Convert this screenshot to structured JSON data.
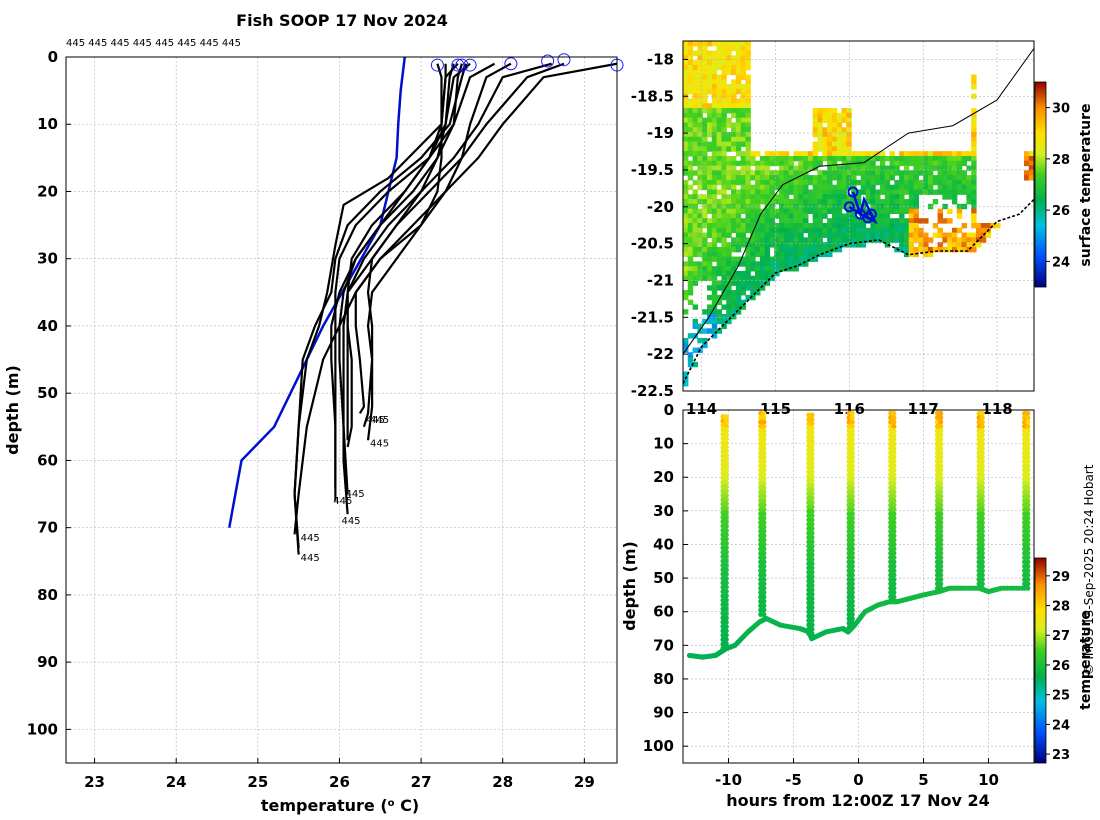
{
  "colors": {
    "profile_line": "#000000",
    "climatology_line": "#0010d0",
    "marker_circle": "#1a1aff",
    "grid": "#b0b0c8",
    "axis": "#000000"
  },
  "credit": "© IMOS 13-Sep-2025 20:24 Hobart",
  "chart_data": [
    {
      "id": "profiles",
      "type": "line",
      "title": "Fish SOOP 17 Nov 2024",
      "xlabel": "temperature (° C)",
      "xlabel_parts": {
        "pre": "temperature (",
        "sup": "o",
        "post": " C)"
      },
      "ylabel": "depth (m)",
      "xlim": [
        22.65,
        29.4
      ],
      "ylim": [
        105,
        0
      ],
      "xticks": [
        "23",
        "24",
        "25",
        "26",
        "27",
        "28",
        "29"
      ],
      "yticks": [
        "0",
        "10",
        "20",
        "30",
        "40",
        "50",
        "60",
        "70",
        "80",
        "90",
        "100"
      ],
      "grid": true,
      "top_labels_text": "445 445 445 445 445 445 445 445",
      "climatology": {
        "name": "climatology",
        "x": [
          26.8,
          26.75,
          26.72,
          26.7,
          26.5,
          25.8,
          25.4,
          25.2,
          24.8,
          24.65
        ],
        "y": [
          0,
          5,
          10,
          15,
          25,
          40,
          50,
          55,
          60,
          70
        ]
      },
      "profiles": [
        {
          "name": "p1",
          "x": [
            27.2,
            27.25,
            27.25,
            27.25,
            27.2,
            27.0,
            26.5,
            26.2,
            26.2,
            26.25,
            26.3,
            26.25
          ],
          "y": [
            1,
            3,
            10,
            15,
            20,
            25,
            30,
            35,
            40,
            45,
            52,
            53
          ]
        },
        {
          "name": "p2",
          "x": [
            27.4,
            27.35,
            27.3,
            27.2,
            27.0,
            26.7,
            26.4,
            26.35,
            26.4,
            26.4,
            26.35,
            26.3
          ],
          "y": [
            1,
            3,
            10,
            15,
            20,
            25,
            30,
            35,
            40,
            45,
            53,
            55
          ]
        },
        {
          "name": "p3",
          "x": [
            28.1,
            27.8,
            27.6,
            27.5,
            27.3,
            27.0,
            26.7,
            26.4,
            26.35,
            26.4,
            26.4,
            26.35
          ],
          "y": [
            1,
            3,
            10,
            15,
            20,
            25,
            30,
            35,
            40,
            45,
            52,
            57
          ]
        },
        {
          "name": "p4",
          "x": [
            28.6,
            28.0,
            27.7,
            27.4,
            27.0,
            26.6,
            26.3,
            26.1,
            26.1,
            26.15,
            26.15,
            26.1
          ],
          "y": [
            1,
            3,
            10,
            15,
            20,
            25,
            30,
            35,
            40,
            45,
            55,
            58
          ]
        },
        {
          "name": "p5",
          "x": [
            27.6,
            27.4,
            27.3,
            27.1,
            26.8,
            26.5,
            26.2,
            26.05,
            26.0,
            26.0,
            26.05,
            26.1
          ],
          "y": [
            1,
            3,
            10,
            15,
            20,
            25,
            30,
            35,
            40,
            45,
            55,
            65
          ]
        },
        {
          "name": "p6",
          "x": [
            27.5,
            27.45,
            27.4,
            27.1,
            26.6,
            26.2,
            26.0,
            25.95,
            25.95,
            25.95,
            25.95,
            25.95
          ],
          "y": [
            1,
            3,
            10,
            15,
            20,
            25,
            30,
            35,
            40,
            50,
            60,
            66
          ]
        },
        {
          "name": "p7",
          "x": [
            28.75,
            28.3,
            27.8,
            27.5,
            27.1,
            26.7,
            26.4,
            26.1,
            26.05,
            26.05,
            26.05,
            26.1
          ],
          "y": [
            1,
            3,
            10,
            15,
            20,
            25,
            30,
            35,
            40,
            50,
            60,
            68
          ]
        },
        {
          "name": "p8",
          "x": [
            29.4,
            28.5,
            28.0,
            27.7,
            27.3,
            26.9,
            26.5,
            26.2,
            26.0,
            25.8,
            25.6,
            25.5,
            25.45
          ],
          "y": [
            1,
            3,
            10,
            15,
            20,
            25,
            30,
            35,
            40,
            45,
            55,
            65,
            71
          ]
        },
        {
          "name": "p9",
          "x": [
            27.45,
            27.3,
            27.25,
            26.6,
            26.05,
            25.95,
            25.85,
            25.75,
            25.6,
            25.5,
            25.45,
            25.5
          ],
          "y": [
            1,
            3,
            10,
            18,
            22,
            28,
            35,
            40,
            45,
            55,
            65,
            74
          ]
        },
        {
          "name": "p10",
          "x": [
            27.3,
            27.3,
            27.25,
            27.1,
            26.8,
            26.4,
            26.15,
            26.1,
            26.1,
            26.1,
            26.1
          ],
          "y": [
            1,
            3,
            10,
            15,
            20,
            25,
            30,
            35,
            40,
            50,
            57
          ]
        },
        {
          "name": "p11",
          "x": [
            27.9,
            27.6,
            27.4,
            27.2,
            26.9,
            26.5,
            26.2,
            26.0,
            25.9,
            25.9,
            25.95,
            25.95
          ],
          "y": [
            1,
            3,
            10,
            15,
            20,
            25,
            30,
            35,
            40,
            45,
            55,
            64
          ]
        },
        {
          "name": "p12",
          "x": [
            27.55,
            27.5,
            27.35,
            27.0,
            26.5,
            26.1,
            25.95,
            25.9,
            25.7,
            25.55,
            25.5,
            25.45,
            25.5
          ],
          "y": [
            1,
            3,
            10,
            15,
            20,
            25,
            30,
            35,
            40,
            45,
            55,
            65,
            73
          ]
        }
      ],
      "markers": {
        "x": [
          27.2,
          27.45,
          27.5,
          27.6,
          28.1,
          28.55,
          28.75,
          29.4
        ],
        "y": [
          1.2,
          1.2,
          1.2,
          1.2,
          1.0,
          0.6,
          0.4,
          1.2
        ]
      },
      "end_labels": [
        {
          "text": "445",
          "x": 26.3,
          "y": 54
        },
        {
          "text": "445",
          "x": 26.35,
          "y": 54
        },
        {
          "text": "445",
          "x": 26.35,
          "y": 57.5
        },
        {
          "text": "445",
          "x": 26.05,
          "y": 65
        },
        {
          "text": "445",
          "x": 25.9,
          "y": 66
        },
        {
          "text": "445",
          "x": 26.0,
          "y": 69
        },
        {
          "text": "445",
          "x": 25.5,
          "y": 71.5
        },
        {
          "text": "445",
          "x": 25.5,
          "y": 74.5
        }
      ]
    },
    {
      "id": "sst_map",
      "type": "heatmap",
      "ylim": [
        -22.5,
        -17.75
      ],
      "xlim": [
        113.75,
        118.5
      ],
      "yticks": [
        "-18",
        "-18.5",
        "-19",
        "-19.5",
        "-20",
        "-20.5",
        "-21",
        "-21.5",
        "-22",
        "-22.5"
      ],
      "xticks": [
        "114",
        "115",
        "116",
        "117",
        "118"
      ],
      "colorbar": {
        "label": "surface temperature",
        "min": 23,
        "max": 31,
        "ticks": [
          "24",
          "26",
          "28",
          "30"
        ]
      },
      "track": {
        "lon": [
          116.05,
          116.1,
          116.15,
          116.2,
          116.3,
          116.35,
          116.25,
          116.15,
          116.0
        ],
        "lat": [
          -19.8,
          -19.95,
          -20.1,
          -19.9,
          -20.1,
          -20.2,
          -20.15,
          -20.1,
          -20.0
        ]
      },
      "coast": {
        "lon": [
          113.75,
          114.0,
          114.3,
          114.6,
          115.0,
          115.3,
          115.6,
          116.0,
          116.4,
          116.8,
          117.2,
          117.6,
          118.0,
          118.3,
          118.5
        ],
        "lat": [
          -22.4,
          -21.9,
          -21.6,
          -21.3,
          -20.9,
          -20.8,
          -20.65,
          -20.5,
          -20.45,
          -20.65,
          -20.6,
          -20.6,
          -20.2,
          -20.1,
          -19.9
        ]
      },
      "isobath": {
        "lon": [
          113.75,
          114.1,
          114.5,
          114.8,
          115.1,
          115.6,
          116.2,
          116.8,
          117.4,
          118.0,
          118.5
        ],
        "lat": [
          -22.0,
          -21.5,
          -20.8,
          -20.1,
          -19.7,
          -19.45,
          -19.4,
          -19.0,
          -18.9,
          -18.55,
          -17.85
        ]
      }
    },
    {
      "id": "time_depth",
      "type": "scatter",
      "xlabel": "hours from 12:00Z 17 Nov 24",
      "ylabel": "depth (m)",
      "xlim": [
        -13.5,
        13.5
      ],
      "ylim": [
        105,
        0
      ],
      "xticks": [
        "-10",
        "-5",
        "0",
        "5",
        "10"
      ],
      "yticks": [
        "0",
        "10",
        "20",
        "30",
        "40",
        "50",
        "60",
        "70",
        "80",
        "90",
        "100"
      ],
      "colorbar": {
        "label": "temperature",
        "min": 22.7,
        "max": 29.6,
        "ticks": [
          "23",
          "24",
          "25",
          "26",
          "27",
          "28",
          "29"
        ]
      },
      "bottom_track": {
        "x": [
          -13,
          -12,
          -11,
          -10.6,
          -10.2,
          -9.5,
          -8.5,
          -7.6,
          -7.1,
          -6,
          -4.5,
          -3.8,
          -3.6,
          -2.5,
          -1.2,
          -0.8,
          -0.3,
          0.5,
          1.5,
          2.4,
          3,
          4,
          5,
          6.2,
          7,
          8,
          9.3,
          10,
          11,
          12.8
        ],
        "y": [
          73,
          73.5,
          73,
          72,
          71,
          70,
          66,
          63,
          62,
          64,
          65,
          66,
          68,
          66,
          65,
          66,
          64,
          60,
          58,
          57,
          57,
          56,
          55,
          54,
          53,
          53,
          53,
          54,
          53,
          53
        ]
      },
      "spikes": [
        {
          "x": -10.3,
          "top": 2,
          "bottom": 71
        },
        {
          "x": -7.4,
          "top": 1,
          "bottom": 62
        },
        {
          "x": -3.7,
          "top": 1.5,
          "bottom": 67
        },
        {
          "x": -0.6,
          "top": 1,
          "bottom": 65
        },
        {
          "x": 2.6,
          "top": 1,
          "bottom": 57
        },
        {
          "x": 6.2,
          "top": 1,
          "bottom": 54
        },
        {
          "x": 9.4,
          "top": 1,
          "bottom": 53.5
        },
        {
          "x": 12.9,
          "top": 1,
          "bottom": 53
        }
      ]
    }
  ]
}
